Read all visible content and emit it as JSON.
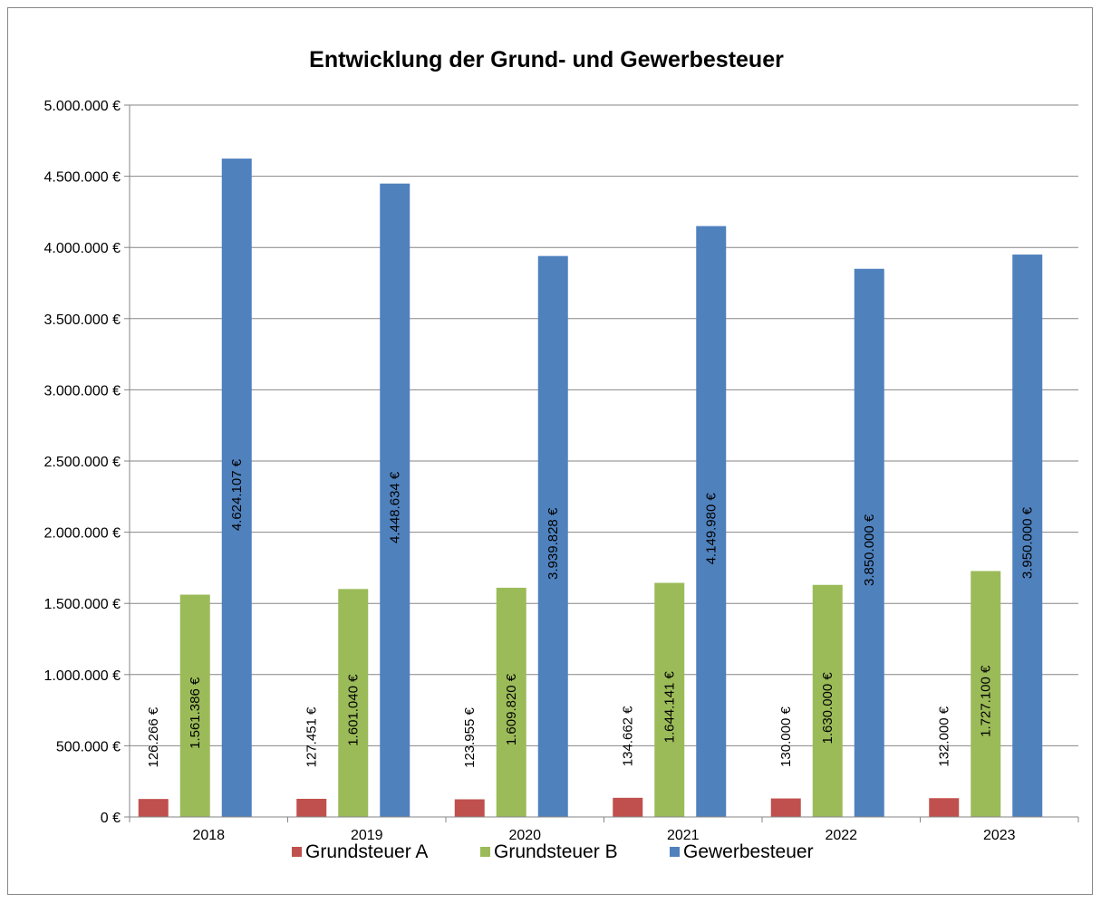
{
  "chart_data": {
    "type": "bar",
    "title": "Entwicklung der Grund- und Gewerbesteuer",
    "categories": [
      "2018",
      "2019",
      "2020",
      "2021",
      "2022",
      "2023"
    ],
    "ylim": [
      0,
      5000000
    ],
    "ytick_labels": [
      "0 €",
      "500.000 €",
      "1.000.000 €",
      "1.500.000 €",
      "2.000.000 €",
      "2.500.000 €",
      "3.000.000 €",
      "3.500.000 €",
      "4.000.000 €",
      "4.500.000 €",
      "5.000.000 €"
    ],
    "grid": true,
    "legend_position": "bottom",
    "series": [
      {
        "name": "Grundsteuer A",
        "color": "#c0504d",
        "values": [
          126266,
          127451,
          123955,
          134662,
          130000,
          132000
        ],
        "labels": [
          "126.266 €",
          "127.451 €",
          "123.955 €",
          "134.662 €",
          "130.000 €",
          "132.000 €"
        ]
      },
      {
        "name": "Grundsteuer B",
        "color": "#9bbb59",
        "values": [
          1561386,
          1601040,
          1609820,
          1644141,
          1630000,
          1727100
        ],
        "labels": [
          "1.561.386 €",
          "1.601.040 €",
          "1.609.820 €",
          "1.644.141 €",
          "1.630.000 €",
          "1.727.100 €"
        ]
      },
      {
        "name": "Gewerbesteuer",
        "color": "#4f81bd",
        "values": [
          4624107,
          4448634,
          3939828,
          4149980,
          3850000,
          3950000
        ],
        "labels": [
          "4.624.107 €",
          "4.448.634 €",
          "3.939.828 €",
          "4.149.980 €",
          "3.850.000 €",
          "3.950.000 €"
        ]
      }
    ]
  }
}
